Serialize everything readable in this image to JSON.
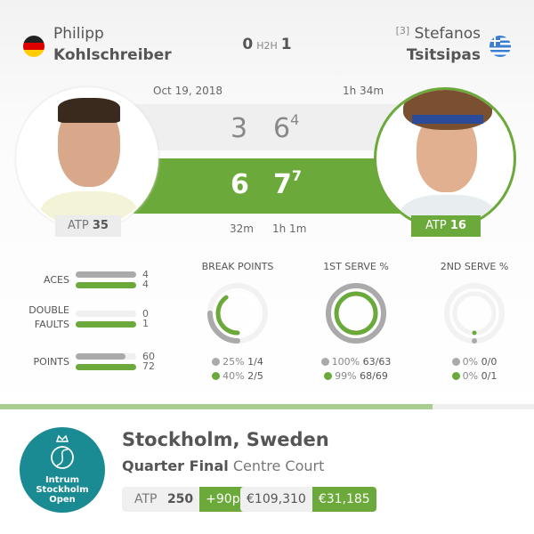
{
  "colors": {
    "green": "#6ba93a",
    "gray": "#aaaaaa",
    "light": "#efefef",
    "teal": "#1a8a93"
  },
  "player1": {
    "first": "Philipp",
    "last": "Kohlschreiber",
    "flag": "germany-flag",
    "rank_label": "ATP",
    "rank": "35",
    "sets": [
      "3",
      "6"
    ],
    "tiebreak": [
      "",
      "4"
    ]
  },
  "player2": {
    "seed": "[3]",
    "first": "Stefanos",
    "last": "Tsitsipas",
    "flag": "greece-flag",
    "rank_label": "ATP",
    "rank": "16",
    "sets": [
      "6",
      "7"
    ],
    "tiebreak": [
      "",
      "7"
    ]
  },
  "h2h": {
    "left": "0",
    "label": "H2H",
    "right": "1"
  },
  "match": {
    "date": "Oct 19, 2018",
    "duration": "1h 34m",
    "set_durations": [
      "32m",
      "1h 1m"
    ]
  },
  "bar_stats": [
    {
      "label": "ACES",
      "p1": 4,
      "p2": 4,
      "p1_frac": 1,
      "p2_frac": 1
    },
    {
      "label": "DOUBLE FAULTS",
      "p1": 0,
      "p2": 1,
      "p1_frac": 0,
      "p2_frac": 1
    },
    {
      "label": "POINTS",
      "p1": 60,
      "p2": 72,
      "p1_frac": 0.83,
      "p2_frac": 1
    }
  ],
  "donuts": [
    {
      "title": "BREAK POINTS",
      "p1_pct": "25%",
      "p1_val": "1/4",
      "p2_pct": "40%",
      "p2_val": "2/5",
      "p1_frac": 0.25,
      "p2_frac": 0.4
    },
    {
      "title": "1ST SERVE %",
      "p1_pct": "100%",
      "p1_val": "63/63",
      "p2_pct": "99%",
      "p2_val": "68/69",
      "p1_frac": 1,
      "p2_frac": 0.99
    },
    {
      "title": "2ND SERVE %",
      "p1_pct": "0%",
      "p1_val": "0/0",
      "p2_pct": "0%",
      "p2_val": "0/1",
      "p1_frac": 0,
      "p2_frac": 0
    }
  ],
  "progress": 0.81,
  "tournament": {
    "logo_lines": [
      "Intrum",
      "Stockholm",
      "Open"
    ],
    "city": "Stockholm, Sweden",
    "round": "Quarter Final",
    "court": "Centre Court",
    "category_label": "ATP",
    "category": "250",
    "points": "+90p",
    "prize_total": "€109,310",
    "prize_won": "€31,185"
  }
}
